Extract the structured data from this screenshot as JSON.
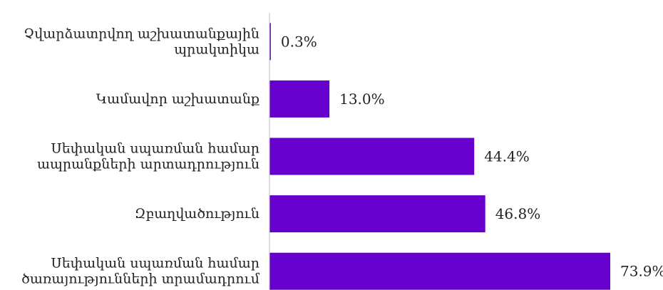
{
  "chart_data": {
    "type": "bar",
    "orientation": "horizontal",
    "title": "",
    "xlabel": "",
    "ylabel": "",
    "categories": [
      [
        "Չվարձատրվող աշխատանքային",
        "պրակտիկա"
      ],
      [
        "Կամավոր աշխատանք"
      ],
      [
        "Սեփական սպառման համար",
        "ապրանքների արտադրություն"
      ],
      [
        "Զբաղվածություն"
      ],
      [
        "Սեփական սպառման համար",
        "ծառայությունների տրամադրում"
      ]
    ],
    "values": [
      0.3,
      13.0,
      44.4,
      46.8,
      73.9
    ],
    "value_labels": [
      "0.3%",
      "13.0%",
      "44.4%",
      "46.8%",
      "73.9%"
    ],
    "xlim": [
      0,
      73.9
    ],
    "grid": false,
    "legend": "none",
    "bar_color": "#6600CC",
    "axis_color": "#BFBFBF"
  }
}
